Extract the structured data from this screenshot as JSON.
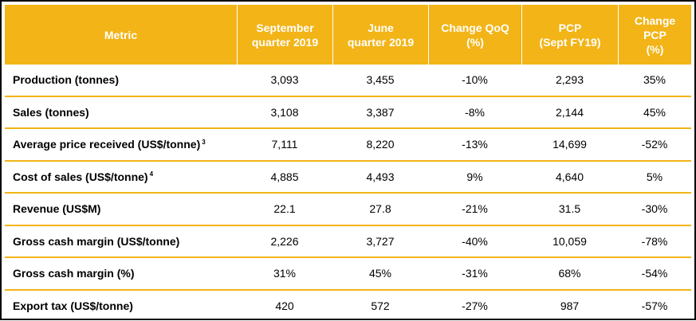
{
  "table": {
    "headers": [
      {
        "line1": "Metric",
        "line2": ""
      },
      {
        "line1": "September",
        "line2": "quarter 2019"
      },
      {
        "line1": "June",
        "line2": "quarter 2019"
      },
      {
        "line1": "Change QoQ",
        "line2": "(%)"
      },
      {
        "line1": "PCP",
        "line2": "(Sept FY19)"
      },
      {
        "line1": "Change PCP",
        "line2": "(%)"
      }
    ],
    "rows": [
      {
        "metric": "Production (tonnes)",
        "footnote": "",
        "sep_q": "3,093",
        "jun_q": "3,455",
        "change_qoq": "-10%",
        "pcp": "2,293",
        "change_pcp": "35%"
      },
      {
        "metric": "Sales (tonnes)",
        "footnote": "",
        "sep_q": "3,108",
        "jun_q": "3,387",
        "change_qoq": "-8%",
        "pcp": "2,144",
        "change_pcp": "45%"
      },
      {
        "metric": "Average price received (US$/tonne)",
        "footnote": "3",
        "sep_q": "7,111",
        "jun_q": "8,220",
        "change_qoq": "-13%",
        "pcp": "14,699",
        "change_pcp": "-52%"
      },
      {
        "metric": "Cost of sales (US$/tonne)",
        "footnote": "4",
        "sep_q": "4,885",
        "jun_q": "4,493",
        "change_qoq": "9%",
        "pcp": "4,640",
        "change_pcp": "5%"
      },
      {
        "metric": "Revenue (US$M)",
        "footnote": "",
        "sep_q": "22.1",
        "jun_q": "27.8",
        "change_qoq": "-21%",
        "pcp": "31.5",
        "change_pcp": "-30%"
      },
      {
        "metric": "Gross cash margin (US$/tonne)",
        "footnote": "",
        "sep_q": "2,226",
        "jun_q": "3,727",
        "change_qoq": "-40%",
        "pcp": "10,059",
        "change_pcp": "-78%"
      },
      {
        "metric": "Gross cash margin (%)",
        "footnote": "",
        "sep_q": "31%",
        "jun_q": "45%",
        "change_qoq": "-31%",
        "pcp": "68%",
        "change_pcp": "-54%"
      },
      {
        "metric": "Export tax (US$/tonne)",
        "footnote": "",
        "sep_q": "420",
        "jun_q": "572",
        "change_qoq": "-27%",
        "pcp": "987",
        "change_pcp": "-57%"
      }
    ]
  },
  "colors": {
    "header_bg": "#f2b417",
    "header_text": "#ffffff",
    "row_separator": "#f2b417",
    "frame_border": "#000000"
  }
}
